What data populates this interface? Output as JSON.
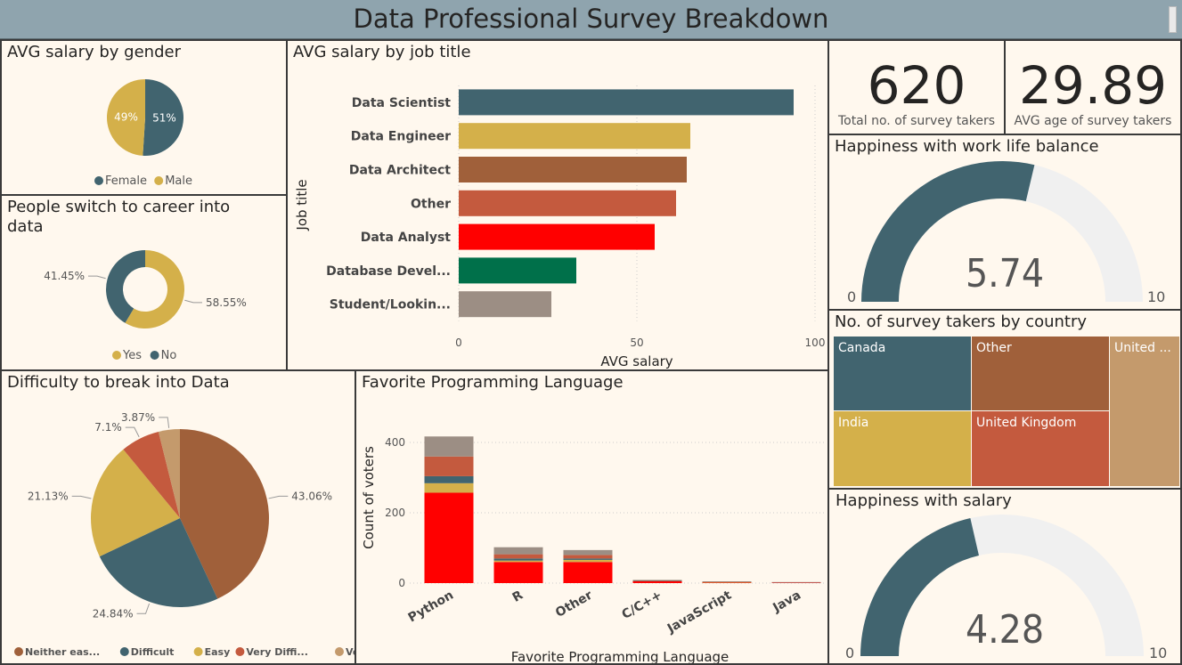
{
  "header": {
    "title": "Data Professional Survey Breakdown"
  },
  "gender_pie": {
    "title": "AVG salary by gender",
    "chart_data": {
      "type": "pie",
      "title": "AVG salary by gender",
      "slices": [
        {
          "name": "Female",
          "value": 51,
          "label": "51%",
          "color": "#41646F"
        },
        {
          "name": "Male",
          "value": 49,
          "label": "49%",
          "color": "#D4B04A"
        }
      ],
      "legend_position": "bottom"
    },
    "legend": [
      {
        "name": "Female",
        "color": "#41646F"
      },
      {
        "name": "Male",
        "color": "#D4B04A"
      }
    ]
  },
  "switch_donut": {
    "title": "People switch to career into data",
    "chart_data": {
      "type": "pie",
      "title": "People switch to career into data",
      "slices": [
        {
          "name": "Yes",
          "value": 58.55,
          "label": "58.55%",
          "color": "#D4B04A"
        },
        {
          "name": "No",
          "value": 41.45,
          "label": "41.45%",
          "color": "#41646F"
        }
      ],
      "legend_position": "bottom"
    },
    "legend": [
      {
        "name": "Yes",
        "color": "#D4B04A"
      },
      {
        "name": "No",
        "color": "#41646F"
      }
    ]
  },
  "job_bar": {
    "title": "AVG salary by job title",
    "chart_data": {
      "type": "bar",
      "orientation": "horizontal",
      "title": "AVG salary by job title",
      "xlabel": "AVG salary",
      "ylabel": "Job title",
      "categories": [
        "Data Scientist",
        "Data Engineer",
        "Data Architect",
        "Other",
        "Data Analyst",
        "Database Devel...",
        "Student/Lookin..."
      ],
      "values": [
        94,
        65,
        64,
        61,
        55,
        33,
        26
      ],
      "colors": [
        "#41646F",
        "#D4B04A",
        "#A0603A",
        "#C45A3E",
        "#FF0000",
        "#00704A",
        "#9C8E84"
      ],
      "xlim": [
        0,
        100
      ],
      "xticks": [
        "0",
        "50",
        "100"
      ],
      "grid": true
    }
  },
  "kpi_total": {
    "value": "620",
    "label": "Total no. of survey takers"
  },
  "kpi_age": {
    "value": "29.89",
    "label": "AVG age of survey takers"
  },
  "gauge_worklife": {
    "title": "Happiness with work life balance",
    "value": 5.74,
    "value_label": "5.74",
    "min": "0",
    "max": "10",
    "min_value": 0,
    "max_value": 10,
    "fill_color": "#41646F",
    "track_color": "#F0F0F0"
  },
  "country_treemap": {
    "title": "No. of survey takers by country",
    "chart_data": {
      "type": "treemap",
      "title": "No. of survey takers by country",
      "cells": [
        {
          "name": "Canada",
          "color": "#41646F"
        },
        {
          "name": "Other",
          "color": "#A0603A"
        },
        {
          "name": "United ...",
          "color": "#C49A6C"
        },
        {
          "name": "India",
          "color": "#D4B04A"
        },
        {
          "name": "United Kingdom",
          "color": "#C45A3E"
        }
      ]
    }
  },
  "gauge_salary": {
    "title": "Happiness with salary",
    "value": 4.28,
    "value_label": "4.28",
    "min": "0",
    "max": "10",
    "min_value": 0,
    "max_value": 10,
    "fill_color": "#41646F",
    "track_color": "#F0F0F0"
  },
  "difficulty_pie": {
    "title": "Difficulty to break into Data",
    "chart_data": {
      "type": "pie",
      "title": "Difficulty to break into Data",
      "slices": [
        {
          "name": "Neither eas...",
          "value": 43.06,
          "label": "43.06%",
          "color": "#A0603A"
        },
        {
          "name": "Difficult",
          "value": 24.84,
          "label": "24.84%",
          "color": "#41646F"
        },
        {
          "name": "Easy",
          "value": 21.13,
          "label": "21.13%",
          "color": "#D4B04A"
        },
        {
          "name": "Very Diffi...",
          "value": 7.1,
          "label": "7.1%",
          "color": "#C45A3E"
        },
        {
          "name": "Very Easy",
          "value": 3.87,
          "label": "3.87%",
          "color": "#C49A6C"
        }
      ],
      "legend_position": "bottom"
    }
  },
  "lang_bar": {
    "title": "Favorite Programming Language",
    "chart_data": {
      "type": "bar",
      "stacked": true,
      "title": "Favorite Programming Language",
      "xlabel": "Favorite Programming Language",
      "ylabel": "Count of voters",
      "categories": [
        "Python",
        "R",
        "Other",
        "C/C++",
        "JavaScript",
        "Java"
      ],
      "series": [
        {
          "color": "#FF0000",
          "values": [
            257,
            60,
            60,
            6,
            2,
            2
          ]
        },
        {
          "color": "#D4B04A",
          "values": [
            27,
            4,
            6,
            0,
            1,
            0
          ]
        },
        {
          "color": "#41646F",
          "values": [
            20,
            6,
            4,
            1,
            0,
            0
          ]
        },
        {
          "color": "#C45A3E",
          "values": [
            56,
            12,
            10,
            1,
            1,
            0
          ]
        },
        {
          "color": "#9C8E84",
          "values": [
            57,
            20,
            14,
            1,
            1,
            1
          ]
        }
      ],
      "ylim": [
        0,
        420
      ],
      "yticks": [
        "0",
        "200",
        "400"
      ],
      "grid": true
    }
  }
}
